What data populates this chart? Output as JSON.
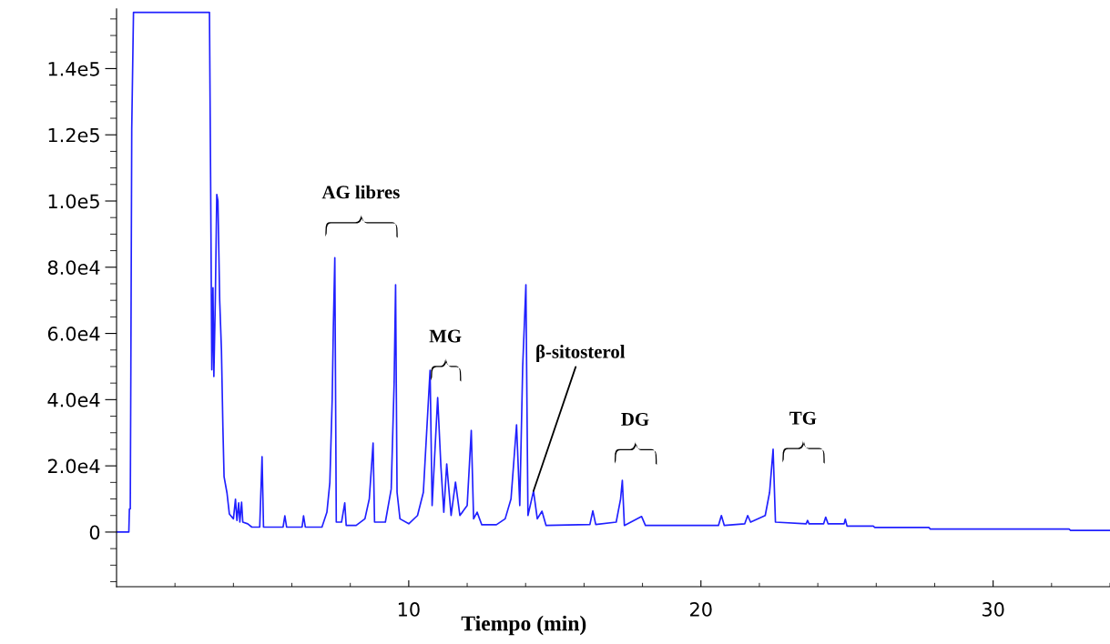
{
  "chart_data": {
    "type": "line",
    "xlabel": "Tiempo (min)",
    "xlim": [
      0,
      34
    ],
    "ylim": [
      -16500,
      158000
    ],
    "xticks": [
      {
        "value": 2,
        "label": null
      },
      {
        "value": 4,
        "label": null
      },
      {
        "value": 6,
        "label": null
      },
      {
        "value": 8,
        "label": null
      },
      10,
      {
        "value": 12,
        "label": null
      },
      {
        "value": 14,
        "label": null
      },
      {
        "value": 16,
        "label": null
      },
      {
        "value": 18,
        "label": null
      },
      20,
      {
        "value": 22,
        "label": null
      },
      {
        "value": 24,
        "label": null
      },
      {
        "value": 26,
        "label": null
      },
      {
        "value": 28,
        "label": null
      },
      30,
      {
        "value": 32,
        "label": null
      },
      {
        "value": 34,
        "label": null
      }
    ],
    "yticks": [
      {
        "value": -15000,
        "label": null
      },
      {
        "value": -10000,
        "label": null
      },
      {
        "value": -5000,
        "label": null
      },
      0,
      {
        "value": 5000,
        "label": null
      },
      {
        "value": 10000,
        "label": null
      },
      {
        "value": 15000,
        "label": null
      },
      {
        "value": 20000,
        "label": "2.0e4"
      },
      {
        "value": 25000,
        "label": null
      },
      {
        "value": 30000,
        "label": null
      },
      {
        "value": 35000,
        "label": null
      },
      {
        "value": 40000,
        "label": "4.0e4"
      },
      {
        "value": 45000,
        "label": null
      },
      {
        "value": 50000,
        "label": null
      },
      {
        "value": 55000,
        "label": null
      },
      {
        "value": 60000,
        "label": "6.0e4"
      },
      {
        "value": 65000,
        "label": null
      },
      {
        "value": 70000,
        "label": null
      },
      {
        "value": 75000,
        "label": null
      },
      {
        "value": 80000,
        "label": "8.0e4"
      },
      {
        "value": 85000,
        "label": null
      },
      {
        "value": 90000,
        "label": null
      },
      {
        "value": 95000,
        "label": null
      },
      {
        "value": 100000,
        "label": "1.0e5"
      },
      {
        "value": 105000,
        "label": null
      },
      {
        "value": 110000,
        "label": null
      },
      {
        "value": 115000,
        "label": null
      },
      {
        "value": 120000,
        "label": "1.2e5"
      },
      {
        "value": 125000,
        "label": null
      },
      {
        "value": 130000,
        "label": null
      },
      {
        "value": 135000,
        "label": null
      },
      {
        "value": 140000,
        "label": "1.4e5"
      },
      {
        "value": 145000,
        "label": null
      },
      {
        "value": 150000,
        "label": null
      },
      {
        "value": 155000,
        "label": null
      }
    ],
    "grid": false,
    "legend": false,
    "marker": "none",
    "line_style": "solid",
    "annotations": [
      "AG libres",
      "MG",
      {
        "text": "β-sitosterol",
        "x": 14.27,
        "y": 12400
      },
      "DG",
      "TG"
    ],
    "series": [
      {
        "color": "#2020ff",
        "x": [
          0,
          0.42,
          0.44,
          0.47,
          0.49,
          0.52,
          0.58,
          3.18,
          3.22,
          3.26,
          3.3,
          3.33,
          3.38,
          3.43,
          3.47,
          3.53,
          3.59,
          3.64,
          3.68,
          3.78,
          3.86,
          4.0,
          4.07,
          4.12,
          4.18,
          4.22,
          4.28,
          4.32,
          4.49,
          4.63,
          4.9,
          4.98,
          5.03,
          5.7,
          5.76,
          5.82,
          6.35,
          6.4,
          6.46,
          7.03,
          7.2,
          7.3,
          7.38,
          7.42,
          7.47,
          7.52,
          7.7,
          7.81,
          7.86,
          8.2,
          8.5,
          8.65,
          8.78,
          8.83,
          9.2,
          9.4,
          9.5,
          9.55,
          9.6,
          9.7,
          10.0,
          10.3,
          10.5,
          10.73,
          10.8,
          10.99,
          11.1,
          11.2,
          11.3,
          11.45,
          11.6,
          11.75,
          12.0,
          12.14,
          12.22,
          12.34,
          12.5,
          13.0,
          13.3,
          13.5,
          13.69,
          13.8,
          13.9,
          14.01,
          14.08,
          14.27,
          14.4,
          14.56,
          14.7,
          16.2,
          16.3,
          16.4,
          17.1,
          17.25,
          17.31,
          17.38,
          17.97,
          18.1,
          20.6,
          20.7,
          20.8,
          21.5,
          21.6,
          21.7,
          22.2,
          22.35,
          22.47,
          22.55,
          23.6,
          23.65,
          23.7,
          24.2,
          24.27,
          24.35,
          24.9,
          24.94,
          25.0,
          25.9,
          25.95,
          27.8,
          27.85,
          32.6,
          32.65,
          34
        ],
        "values": [
          0,
          0,
          7000,
          7000,
          50000,
          121600,
          157000,
          157000,
          106000,
          49000,
          73800,
          47000,
          70000,
          102000,
          100000,
          70000,
          55000,
          31500,
          16700,
          11800,
          5500,
          4000,
          9900,
          3500,
          8800,
          3000,
          9000,
          3000,
          2500,
          1500,
          1500,
          22800,
          1500,
          1500,
          4900,
          1500,
          1500,
          4900,
          1500,
          1500,
          6000,
          15000,
          40000,
          62000,
          82900,
          3000,
          3000,
          8800,
          2000,
          2000,
          4000,
          10000,
          26900,
          3000,
          3000,
          13000,
          45000,
          74700,
          12000,
          4000,
          2500,
          5000,
          12000,
          48900,
          8000,
          40600,
          20000,
          6000,
          20600,
          5000,
          15100,
          5000,
          8000,
          30700,
          4000,
          6000,
          2200,
          2200,
          4000,
          10000,
          32400,
          8000,
          50000,
          74700,
          5000,
          12400,
          4000,
          6300,
          2000,
          2300,
          6400,
          2300,
          3000,
          10000,
          15600,
          2000,
          4700,
          2000,
          2000,
          5000,
          2000,
          2500,
          5000,
          3000,
          5000,
          12000,
          25000,
          3000,
          2500,
          3500,
          2500,
          2500,
          4500,
          2500,
          2500,
          3900,
          1800,
          1800,
          1400,
          1400,
          900,
          900,
          500,
          500
        ]
      }
    ]
  }
}
